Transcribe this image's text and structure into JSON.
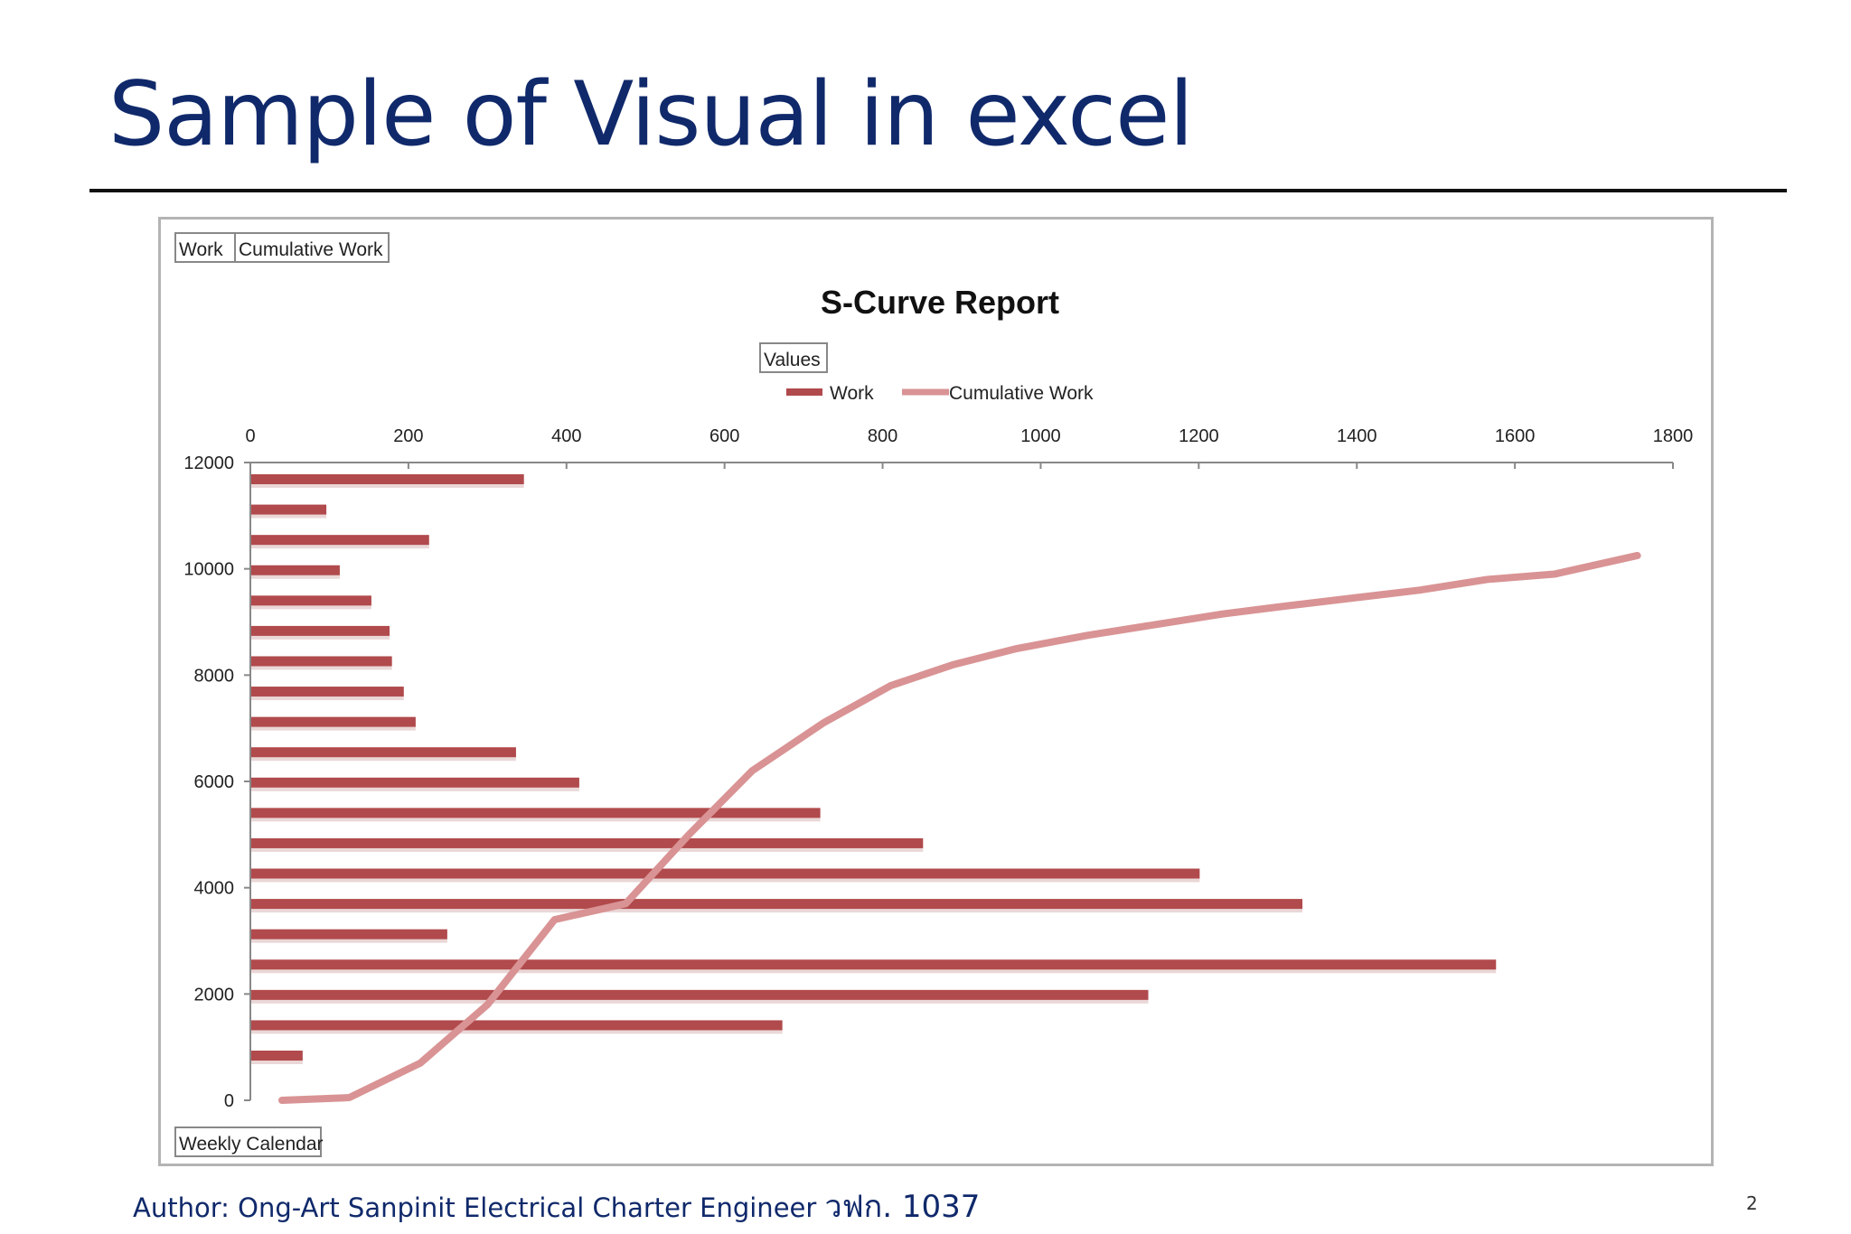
{
  "slide": {
    "title": "Sample of Visual in excel",
    "author": "Author: Ong-Art Sanpinit Electrical Charter Engineer",
    "author_thai": "วฟก. 1037",
    "page_number": "2"
  },
  "colors": {
    "title": "#10296b",
    "work_bar": "#b14a4c",
    "cumulative_line": "#d99394"
  },
  "chart_data": {
    "type": "bar",
    "orientation": "horizontal",
    "title": "S-Curve Report",
    "pivot_buttons": [
      "Work",
      "Cumulative Work"
    ],
    "values_button": "Values",
    "axis_button": "Weekly Calendar",
    "legend": {
      "placement": "top",
      "entries": [
        {
          "name": "Work",
          "style": "bar"
        },
        {
          "name": "Cumulative Work",
          "style": "line"
        }
      ]
    },
    "x_axis": {
      "position": "top",
      "range": [
        0,
        1800
      ],
      "ticks": [
        0,
        200,
        400,
        600,
        800,
        1000,
        1200,
        1400,
        1600,
        1800
      ]
    },
    "y_axis": {
      "range": [
        0,
        12000
      ],
      "ticks": [
        0,
        2000,
        4000,
        6000,
        8000,
        10000,
        12000
      ]
    },
    "grid": false,
    "series": [
      {
        "name": "Work",
        "type": "bar",
        "values": [
          345,
          95,
          225,
          112,
          152,
          175,
          178,
          193,
          208,
          335,
          415,
          720,
          850,
          1200,
          1330,
          248,
          1575,
          1135,
          672,
          65
        ]
      },
      {
        "name": "Cumulative Work",
        "type": "line",
        "points": [
          [
            40,
            0
          ],
          [
            125,
            50
          ],
          [
            215,
            700
          ],
          [
            300,
            1800
          ],
          [
            385,
            3400
          ],
          [
            475,
            3700
          ],
          [
            555,
            5000
          ],
          [
            635,
            6200
          ],
          [
            725,
            7100
          ],
          [
            810,
            7800
          ],
          [
            890,
            8200
          ],
          [
            970,
            8500
          ],
          [
            1060,
            8750
          ],
          [
            1145,
            8950
          ],
          [
            1230,
            9150
          ],
          [
            1310,
            9300
          ],
          [
            1395,
            9450
          ],
          [
            1480,
            9600
          ],
          [
            1565,
            9800
          ],
          [
            1650,
            9900
          ],
          [
            1755,
            10250
          ]
        ]
      }
    ]
  }
}
